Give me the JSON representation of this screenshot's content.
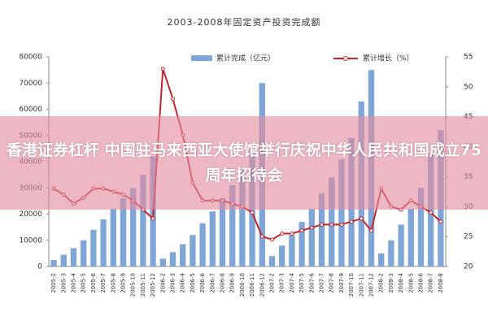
{
  "chart_data": {
    "type": "bar_line",
    "title": "2003-2008年固定资产投资完成额",
    "categories": [
      "2005-2",
      "2005-3",
      "2005-4",
      "2005-5",
      "2005-6",
      "2005-7",
      "2005-8",
      "2005-9",
      "2005-10",
      "2005-11",
      "2005-12",
      "2006-2",
      "2006-3",
      "2006-4",
      "2006-5",
      "2006-6",
      "2006-7",
      "2006-8",
      "2006-9",
      "2006-10",
      "2006-11",
      "2006-12",
      "2007-2",
      "2007-3",
      "2007-4",
      "2007-5",
      "2007-6",
      "2007-7",
      "2007-8",
      "2007-9",
      "2007-10",
      "2007-11",
      "2007-12",
      "2008-2",
      "2008-3",
      "2008-4",
      "2008-5",
      "2008-6",
      "2008-7",
      "2008-8"
    ],
    "series": [
      {
        "name": "累计完成（亿元）",
        "color": "#7fa6d6",
        "values": [
          2500,
          4500,
          7000,
          10000,
          14000,
          18000,
          22000,
          26000,
          30000,
          35000,
          42000,
          3000,
          5500,
          8500,
          12000,
          16500,
          21000,
          26000,
          31000,
          37000,
          44000,
          70000,
          4000,
          8000,
          12000,
          17000,
          22000,
          28000,
          34000,
          41000,
          49000,
          63000,
          75000,
          5000,
          10000,
          16000,
          22000,
          30000,
          43000,
          52000
        ]
      },
      {
        "name": "累计增长（%）",
        "color": "#c0272d",
        "axis": "y2",
        "values": [
          33,
          32,
          30.5,
          31.5,
          33,
          33,
          32.5,
          32,
          31,
          29.5,
          28,
          53,
          48,
          42,
          34,
          31,
          31,
          31,
          30.5,
          30,
          29,
          25,
          24.5,
          25.5,
          25.5,
          26,
          26.5,
          27,
          27,
          27,
          27.5,
          28,
          26,
          33,
          30,
          29.5,
          31,
          30,
          29,
          27.5
        ]
      }
    ],
    "ylim": [
      0,
      80000
    ],
    "yticks": [
      0,
      10000,
      20000,
      30000,
      40000,
      50000,
      60000,
      70000,
      80000
    ],
    "y2lim": [
      20,
      55
    ],
    "y2ticks": [
      20,
      25,
      30,
      35,
      40,
      45,
      50,
      55
    ]
  },
  "overlay": {
    "text": "香港证券杠杆 中国驻马来西亚大使馆举行庆祝中华人民共和国成立75周年招待会"
  }
}
